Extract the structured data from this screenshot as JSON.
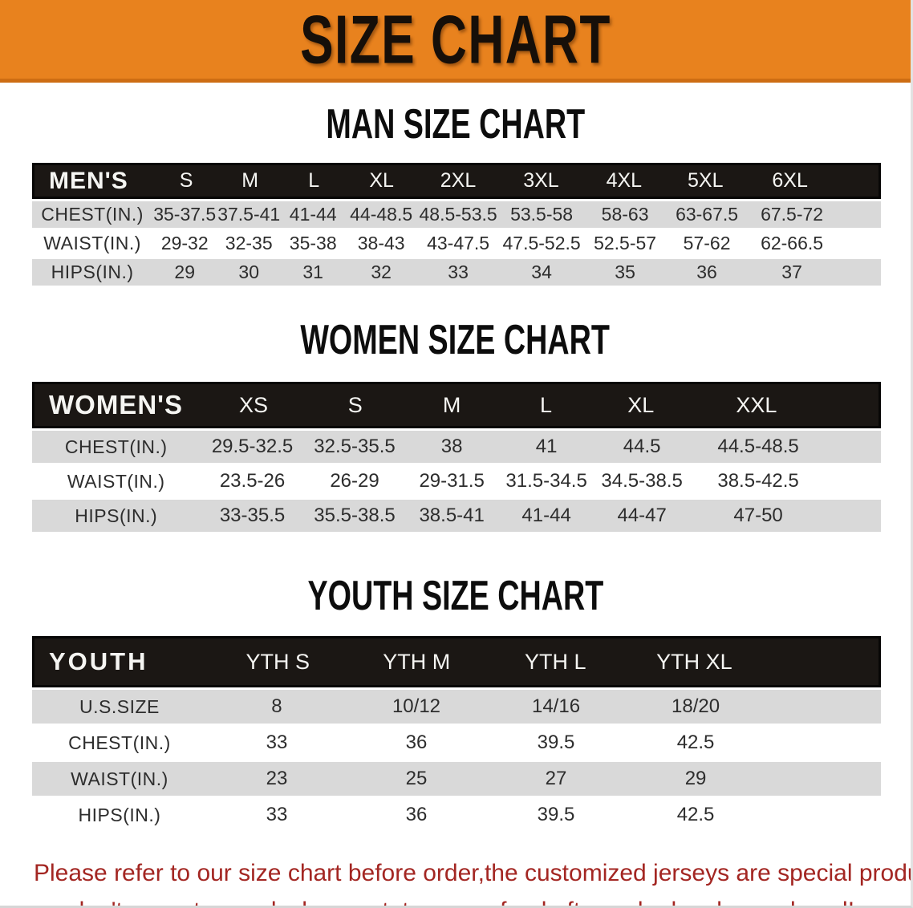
{
  "banner": {
    "title": "SIZE CHART",
    "background_color": "#E8821E",
    "text_color": "#160F09"
  },
  "sections": {
    "men_heading": "MAN SIZE CHART",
    "women_heading": "WOMEN SIZE CHART",
    "youth_heading": "YOUTH SIZE CHART"
  },
  "men_table": {
    "header": [
      "MEN'S",
      "S",
      "M",
      "L",
      "XL",
      "2XL",
      "3XL",
      "4XL",
      "5XL",
      "6XL"
    ],
    "rows": [
      {
        "label": "CHEST(IN.)",
        "values": [
          "35-37.5",
          "37.5-41",
          "41-44",
          "44-48.5",
          "48.5-53.5",
          "53.5-58",
          "58-63",
          "63-67.5",
          "67.5-72"
        ]
      },
      {
        "label": "WAIST(IN.)",
        "values": [
          "29-32",
          "32-35",
          "35-38",
          "38-43",
          "43-47.5",
          "47.5-52.5",
          "52.5-57",
          "57-62",
          "62-66.5"
        ]
      },
      {
        "label": "HIPS(IN.)",
        "values": [
          "29",
          "30",
          "31",
          "32",
          "33",
          "34",
          "35",
          "36",
          "37"
        ]
      }
    ]
  },
  "women_table": {
    "header": [
      "WOMEN'S",
      "XS",
      "S",
      "M",
      "L",
      "XL",
      "XXL"
    ],
    "rows": [
      {
        "label": "CHEST(IN.)",
        "values": [
          "29.5-32.5",
          "32.5-35.5",
          "38",
          "41",
          "44.5",
          "44.5-48.5"
        ]
      },
      {
        "label": "WAIST(IN.)",
        "values": [
          "23.5-26",
          "26-29",
          "29-31.5",
          "31.5-34.5",
          "34.5-38.5",
          "38.5-42.5"
        ]
      },
      {
        "label": "HIPS(IN.)",
        "values": [
          "33-35.5",
          "35.5-38.5",
          "38.5-41",
          "41-44",
          "44-47",
          "47-50"
        ]
      }
    ]
  },
  "youth_table": {
    "header": [
      "YOUTH",
      "YTH S",
      "YTH M",
      "YTH L",
      "YTH XL"
    ],
    "rows": [
      {
        "label": "U.S.SIZE",
        "values": [
          "8",
          "10/12",
          "14/16",
          "18/20"
        ]
      },
      {
        "label": "CHEST(IN.)",
        "values": [
          "33",
          "36",
          "39.5",
          "42.5"
        ]
      },
      {
        "label": "WAIST(IN.)",
        "values": [
          "23",
          "25",
          "27",
          "29"
        ]
      },
      {
        "label": "HIPS(IN.)",
        "values": [
          "33",
          "36",
          "39.5",
          "42.5"
        ]
      }
    ]
  },
  "disclaimer": {
    "line1": "Please refer to our size chart before order,the customized jerseys are special products,",
    "line2": "we don't accept cancel, change, teturn or refund after order has been placed!",
    "text_color": "#A32622"
  },
  "colors": {
    "banner_orange": "#E8821E",
    "banner_border": "#CD6D13",
    "header_band_black": "#1B1714",
    "row_gray": "#D9D9D9",
    "row_white": "#FFFFFF",
    "value_text": "#2D2D2D",
    "disclaimer_red": "#A32622"
  }
}
